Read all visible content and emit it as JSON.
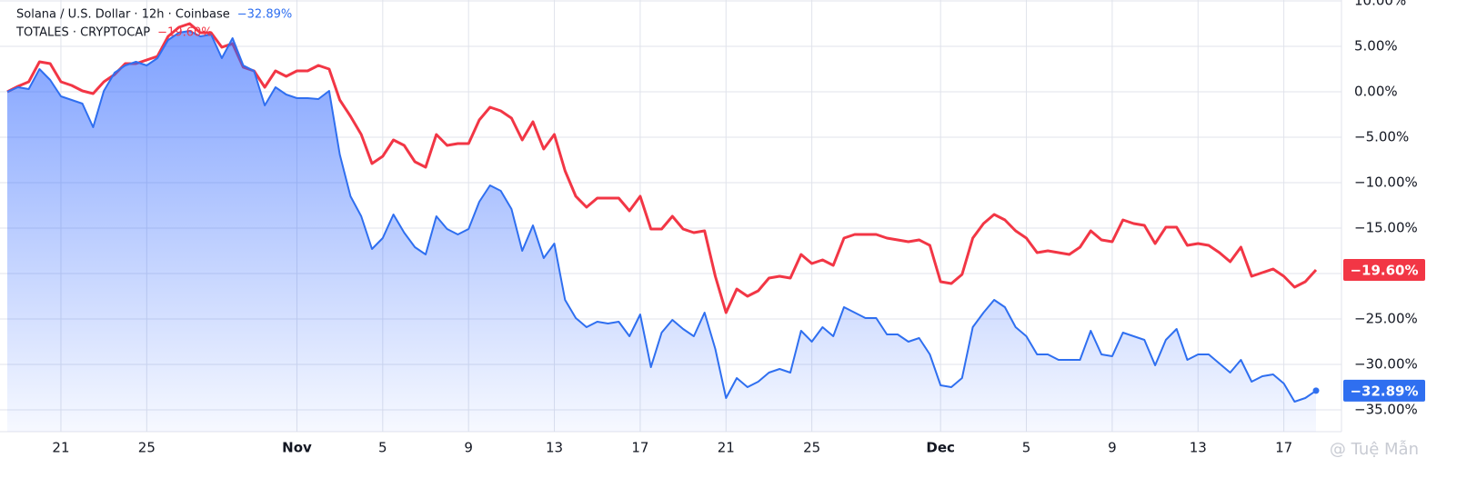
{
  "chart_data": {
    "type": "line",
    "categories": [
      null,
      null,
      null,
      null,
      null,
      "21",
      null,
      null,
      null,
      null,
      null,
      null,
      null,
      "25",
      null,
      null,
      null,
      null,
      null,
      null,
      null,
      null,
      null,
      null,
      null,
      null,
      null,
      "Nov",
      null,
      null,
      null,
      null,
      null,
      null,
      null,
      "5",
      null,
      null,
      null,
      null,
      null,
      null,
      null,
      "9",
      null,
      null,
      null,
      null,
      null,
      null,
      null,
      "13",
      null,
      null,
      null,
      null,
      null,
      null,
      null,
      "17",
      null,
      null,
      null,
      null,
      null,
      null,
      null,
      "21",
      null,
      null,
      null,
      null,
      null,
      null,
      null,
      "25",
      null,
      null,
      null,
      null,
      null,
      null,
      null,
      null,
      null,
      null,
      null,
      "Dec",
      null,
      null,
      null,
      null,
      null,
      null,
      null,
      "5",
      null,
      null,
      null,
      null,
      null,
      null,
      null,
      "9",
      null,
      null,
      null,
      null,
      null,
      null,
      null,
      "13",
      null,
      null,
      null,
      null,
      null,
      null,
      null,
      "17",
      null,
      null,
      null
    ],
    "series": [
      {
        "name": "TOTALES · CRYPTOCAP",
        "color": "#f23645",
        "last_value_label": "−19.60%",
        "values": [
          0,
          0.6,
          1.1,
          3.3,
          3.1,
          1.1,
          0.7,
          0.1,
          -0.2,
          1.1,
          1.9,
          3.1,
          3.1,
          3.5,
          3.9,
          6.1,
          7.1,
          7.5,
          6.5,
          6.5,
          4.9,
          5.3,
          2.7,
          2.3,
          0.5,
          2.3,
          1.7,
          2.3,
          2.3,
          2.9,
          2.5,
          -0.9,
          -2.7,
          -4.7,
          -7.9,
          -7.1,
          -5.3,
          -5.9,
          -7.7,
          -8.3,
          -4.7,
          -5.9,
          -5.7,
          -5.7,
          -3.1,
          -1.7,
          -2.1,
          -2.9,
          -5.3,
          -3.3,
          -6.3,
          -4.7,
          -8.7,
          -11.5,
          -12.7,
          -11.7,
          -11.7,
          -11.7,
          -13.1,
          -11.5,
          -15.1,
          -15.1,
          -13.7,
          -15.1,
          -15.5,
          -15.3,
          -20.3,
          -24.3,
          -21.7,
          -22.5,
          -21.9,
          -20.5,
          -20.3,
          -20.5,
          -17.9,
          -18.9,
          -18.5,
          -19.1,
          -16.1,
          -15.7,
          -15.7,
          -15.7,
          -16.1,
          -16.3,
          -16.5,
          -16.3,
          -16.9,
          -20.9,
          -21.1,
          -20.1,
          -16.1,
          -14.5,
          -13.5,
          -14.1,
          -15.3,
          -16.1,
          -17.7,
          -17.5,
          -17.7,
          -17.9,
          -17.1,
          -15.3,
          -16.3,
          -16.5,
          -14.1,
          -14.5,
          -14.7,
          -16.7,
          -14.9,
          -14.9,
          -16.9,
          -16.7,
          -16.9,
          -17.7,
          -18.7,
          -17.1,
          -20.3,
          -19.9,
          -19.5,
          -20.3,
          -21.5,
          -20.9,
          -19.6
        ]
      },
      {
        "name": "Solana / U.S. Dollar · 12h · Coinbase",
        "color": "#2f6ff0",
        "area": true,
        "last_value_label": "−32.89%",
        "values": [
          0,
          0.5,
          0.3,
          2.5,
          1.3,
          -0.5,
          -0.9,
          -1.3,
          -3.9,
          0.1,
          2.1,
          2.9,
          3.3,
          2.9,
          3.7,
          5.7,
          6.5,
          6.7,
          6.1,
          6.3,
          3.7,
          5.9,
          2.9,
          2.3,
          -1.5,
          0.5,
          -0.3,
          -0.7,
          -0.7,
          -0.8,
          0.1,
          -6.9,
          -11.5,
          -13.7,
          -17.3,
          -16.1,
          -13.5,
          -15.5,
          -17.1,
          -17.9,
          -13.7,
          -15.1,
          -15.7,
          -15.1,
          -12.1,
          -10.3,
          -10.9,
          -12.9,
          -17.5,
          -14.7,
          -18.3,
          -16.7,
          -22.9,
          -24.9,
          -25.9,
          -25.3,
          -25.5,
          -25.3,
          -26.9,
          -24.5,
          -30.3,
          -26.5,
          -25.1,
          -26.1,
          -26.9,
          -24.3,
          -28.3,
          -33.7,
          -31.5,
          -32.5,
          -31.9,
          -30.9,
          -30.5,
          -30.9,
          -26.3,
          -27.5,
          -25.9,
          -26.9,
          -23.7,
          -24.3,
          -24.9,
          -24.9,
          -26.7,
          -26.7,
          -27.5,
          -27.1,
          -28.9,
          -32.3,
          -32.5,
          -31.5,
          -25.9,
          -24.3,
          -22.9,
          -23.7,
          -25.9,
          -26.9,
          -28.9,
          -28.9,
          -29.5,
          -29.5,
          -29.5,
          -26.3,
          -28.9,
          -29.1,
          -26.5,
          -26.9,
          -27.3,
          -30.1,
          -27.3,
          -26.1,
          -29.5,
          -28.9,
          -28.9,
          -29.9,
          -30.9,
          -29.5,
          -31.9,
          -31.3,
          -31.1,
          -32.1,
          -34.1,
          -33.7,
          -32.89
        ]
      }
    ],
    "legend_order": [
      1,
      0
    ],
    "ylim": [
      -37.4,
      10.1
    ],
    "yticks": [
      {
        "value": 10,
        "label": "10.00%"
      },
      {
        "value": 5,
        "label": "5.00%"
      },
      {
        "value": 0,
        "label": "0.00%"
      },
      {
        "value": -5,
        "label": "−5.00%"
      },
      {
        "value": -10,
        "label": "−10.00%"
      },
      {
        "value": -15,
        "label": "−15.00%"
      },
      {
        "value": -20,
        "label": "−20.00%"
      },
      {
        "value": -25,
        "label": "−25.00%"
      },
      {
        "value": -30,
        "label": "−30.00%"
      },
      {
        "value": -35,
        "label": "−35.00%"
      }
    ],
    "grid": true,
    "watermark": "@ Tuệ Mẫn"
  }
}
